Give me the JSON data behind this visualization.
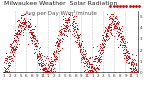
{
  "title": "Milwaukee Weather  Solar Radiation",
  "subtitle": "Avg per Day W/m²/minute",
  "bg_color": "#ffffff",
  "plot_bg": "#ffffff",
  "dot_color": "#dd0000",
  "black_dot_color": "#000000",
  "grid_color": "#bbbbbb",
  "legend_box_color": "#cc0000",
  "ylim": [
    0,
    5
  ],
  "y_ticks": [
    0,
    1,
    2,
    3,
    4,
    5
  ],
  "num_years": 3,
  "title_fontsize": 4.5,
  "tick_fontsize": 3.0
}
